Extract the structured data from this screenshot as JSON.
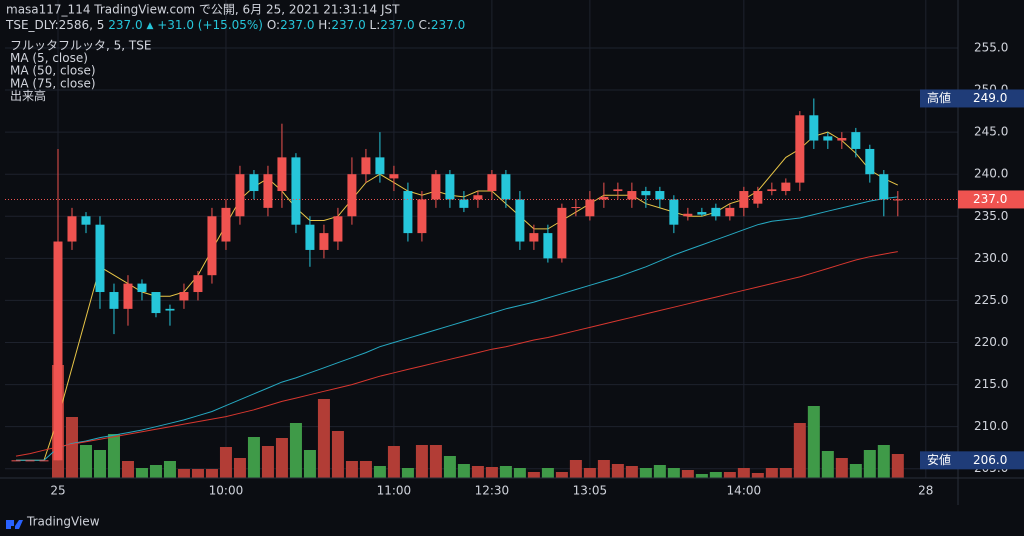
{
  "chart_data": {
    "type": "candlestick",
    "header": {
      "line1": "masa117_114 TradingView.com で公開, 6月 25, 2021 21:31:14 JST",
      "symbol": "TSE_DLY:2586, 5",
      "price": "237.0",
      "arrow": "▲",
      "change": "+31.0 (+15.05%)",
      "ohlc": [
        {
          "key": "O:",
          "value": "237.0"
        },
        {
          "key": "H:",
          "value": "237.0"
        },
        {
          "key": "L:",
          "value": "237.0"
        },
        {
          "key": "C:",
          "value": "237.0"
        }
      ]
    },
    "xlim": [
      -0.786,
      67.3
    ],
    "xticks": [
      {
        "value": 3,
        "label": "25"
      },
      {
        "value": 15,
        "label": "10:00"
      },
      {
        "value": 27,
        "label": "11:00"
      },
      {
        "value": 34,
        "label": "12:30"
      },
      {
        "value": 41,
        "label": "13:05"
      },
      {
        "value": 52,
        "label": "14:00"
      },
      {
        "value": 65,
        "label": "28"
      }
    ],
    "ylim": [
      203.9,
      260.7
    ],
    "yticks": [
      {
        "value": 205,
        "label": "205.0"
      },
      {
        "value": 210,
        "label": "210.0"
      },
      {
        "value": 215,
        "label": "215.0"
      },
      {
        "value": 220,
        "label": "220.0"
      },
      {
        "value": 225,
        "label": "225.0"
      },
      {
        "value": 230,
        "label": "230.0"
      },
      {
        "value": 235,
        "label": "235.0"
      },
      {
        "value": 240,
        "label": "240.0"
      },
      {
        "value": 245,
        "label": "245.0"
      },
      {
        "value": 250,
        "label": "250.0"
      },
      {
        "value": 255,
        "label": "255.0"
      }
    ],
    "grid": true,
    "series": [
      {
        "name": "フルッタフルッタ, 5, TSE",
        "type": "candlestick",
        "up_color": "#ef5350",
        "down_color": "#26c6da",
        "open": [
          206,
          206,
          206,
          206,
          232,
          235,
          234,
          226,
          224,
          227,
          226,
          224,
          225,
          226,
          228,
          232,
          235,
          240,
          236,
          238,
          242,
          234,
          231,
          232,
          235,
          240,
          242,
          239.5,
          238,
          233,
          237,
          240,
          237,
          237,
          238,
          240,
          237,
          232,
          233,
          230,
          236,
          235,
          237,
          238,
          237,
          238,
          238,
          237,
          235,
          235.5,
          236,
          235,
          236,
          236.5,
          238,
          238,
          239,
          247,
          244.5,
          244,
          245,
          243,
          240,
          237
        ],
        "high": [
          206,
          206,
          206,
          243,
          236,
          235.5,
          235,
          227,
          228,
          227.5,
          226,
          224.5,
          227,
          228.5,
          236,
          237,
          241,
          240.5,
          241,
          246,
          242.5,
          235,
          234,
          236,
          242,
          243,
          245,
          241,
          239,
          238,
          240.5,
          240.5,
          238,
          238,
          240.5,
          240.5,
          238,
          234,
          234,
          236.5,
          237,
          238,
          239,
          239,
          239,
          238.5,
          238.5,
          237.5,
          236,
          236,
          236.5,
          236.5,
          238.5,
          238.5,
          239,
          239.5,
          247.5,
          249,
          245,
          245,
          245.5,
          243.5,
          240.5,
          238
        ],
        "low": [
          206,
          206,
          206,
          206,
          231,
          233,
          224,
          221,
          222,
          225,
          223,
          222,
          224,
          225,
          227,
          231,
          234,
          237,
          235,
          236,
          233,
          229,
          230,
          231,
          234,
          239,
          239,
          238,
          232,
          232,
          236,
          236,
          235.5,
          236,
          237,
          236,
          231,
          231,
          229.5,
          229.5,
          235,
          234.5,
          236,
          237,
          236,
          236,
          236,
          233,
          234.5,
          235,
          234.5,
          234.5,
          235,
          236,
          237.5,
          237.5,
          238,
          243,
          243,
          243,
          242,
          239,
          235,
          235
        ],
        "close": [
          206,
          206,
          206,
          232,
          235,
          234,
          226,
          224,
          227,
          226,
          223.5,
          223.8,
          226,
          228,
          235,
          236,
          240,
          238,
          240,
          242,
          234,
          231,
          233,
          235,
          240,
          242,
          240,
          240,
          233,
          237,
          240,
          237,
          236,
          237.5,
          240,
          237,
          232,
          233,
          230,
          236,
          236.1,
          237,
          237.3,
          238.2,
          238,
          237.5,
          237,
          234,
          235.3,
          235.2,
          235,
          236,
          238,
          238,
          238.2,
          239,
          247,
          244,
          244,
          244.3,
          243,
          240,
          237,
          237
        ]
      },
      {
        "name": "MA (5, close)",
        "type": "line",
        "color": "#e8c547",
        "values": [
          206,
          206,
          206,
          211,
          217,
          223,
          229,
          228,
          227,
          226,
          225.5,
          225.5,
          226,
          228,
          231,
          234,
          237,
          238.5,
          239.5,
          238,
          236,
          234.5,
          234.5,
          235,
          237,
          239,
          240,
          239,
          238,
          237.5,
          238,
          237.5,
          237.3,
          238,
          238,
          236.5,
          235,
          233.5,
          233.5,
          234.5,
          235.5,
          236.5,
          237.5,
          237.5,
          237.5,
          236.5,
          236,
          235.5,
          235,
          235,
          235.5,
          236.5,
          237,
          238,
          240,
          242,
          243,
          244.5,
          245,
          244,
          242.5,
          240.5,
          239.5,
          238.7
        ]
      },
      {
        "name": "MA (50, close)",
        "type": "line",
        "color": "#26a9c2",
        "values": [
          206,
          206,
          206,
          207.5,
          208,
          208.3,
          208.7,
          209,
          209.3,
          209.6,
          210,
          210.4,
          210.8,
          211.3,
          211.8,
          212.5,
          213.2,
          213.9,
          214.6,
          215.3,
          215.8,
          216.4,
          217,
          217.6,
          218.2,
          218.8,
          219.5,
          220,
          220.5,
          221,
          221.5,
          222,
          222.5,
          223,
          223.5,
          224,
          224.4,
          224.8,
          225.3,
          225.8,
          226.3,
          226.8,
          227.3,
          227.8,
          228.4,
          229,
          229.7,
          230.4,
          231,
          231.6,
          232.2,
          232.8,
          233.4,
          234,
          234.4,
          234.6,
          234.8,
          235.2,
          235.6,
          236,
          236.4,
          236.8,
          237.1,
          237.3
        ]
      },
      {
        "name": "MA (75, close)",
        "type": "line",
        "color": "#d8372f",
        "values": [
          206.5,
          206.8,
          207.2,
          207.6,
          207.9,
          208.2,
          208.5,
          208.8,
          209.1,
          209.4,
          209.7,
          210,
          210.3,
          210.6,
          210.9,
          211.2,
          211.6,
          212,
          212.5,
          213,
          213.4,
          213.8,
          214.2,
          214.6,
          215,
          215.5,
          216,
          216.4,
          216.8,
          217.2,
          217.6,
          218,
          218.4,
          218.8,
          219.2,
          219.5,
          219.9,
          220.3,
          220.6,
          221,
          221.4,
          221.8,
          222.2,
          222.6,
          223,
          223.4,
          223.8,
          224.2,
          224.6,
          225,
          225.4,
          225.8,
          226.2,
          226.6,
          227,
          227.4,
          227.8,
          228.3,
          228.8,
          229.3,
          229.8,
          230.2,
          230.5,
          230.8
        ]
      },
      {
        "name": "出来高",
        "type": "volume",
        "up_color": "#b23d36",
        "down_color": "#3f9a48",
        "values": [
          null,
          null,
          null,
          113,
          61,
          33,
          28,
          44,
          17,
          10,
          13,
          17,
          9,
          9,
          9,
          31,
          20,
          41,
          32,
          40,
          55,
          28,
          79,
          47,
          17,
          17,
          12,
          32,
          10,
          33,
          33,
          22,
          14,
          12,
          11,
          12,
          10,
          6,
          10,
          6,
          18,
          10,
          18,
          14,
          12,
          10,
          13,
          10,
          8,
          4,
          6,
          6,
          10,
          5,
          10,
          10,
          55,
          72,
          27,
          20,
          14,
          28,
          33,
          24
        ]
      }
    ],
    "price_labels": [
      {
        "label": "高値",
        "value": 249,
        "value_label": "249.0",
        "color": "#1f3c78"
      },
      {
        "value": 237,
        "value_label": "237.0",
        "color": "#ef5350"
      },
      {
        "label": "安値",
        "value": 206,
        "value_label": "206.0",
        "color": "#1f3c78"
      }
    ],
    "brand": "TradingView"
  }
}
